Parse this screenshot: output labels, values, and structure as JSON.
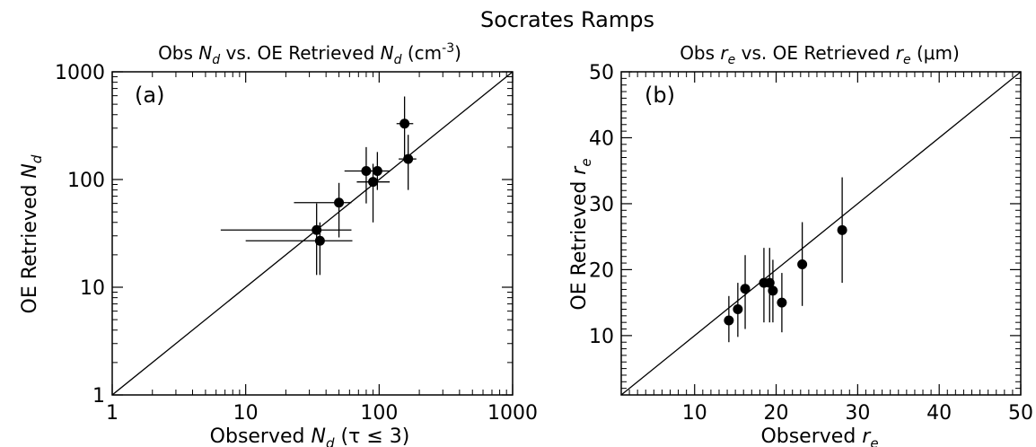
{
  "figure_title": "Socrates Ramps",
  "chart_data": [
    {
      "type": "scatter",
      "panel_label": "(a)",
      "title": {
        "pre": "Obs ",
        "v1": "N",
        "s1": "d",
        "mid": " vs. OE Retrieved ",
        "v2": "N",
        "s2": "d",
        "post1": " (cm",
        "sup": "-3",
        "post2": ")"
      },
      "xlabel": {
        "pre": "Observed ",
        "v": "N",
        "s": "d",
        "post": " (τ ≤ 3)"
      },
      "ylabel": {
        "pre": "OE Retrieved ",
        "v": "N",
        "s": "d"
      },
      "xscale": "log",
      "yscale": "log",
      "xlim": [
        1,
        1000
      ],
      "ylim": [
        1,
        1000
      ],
      "xticks": [
        1,
        10,
        100,
        1000
      ],
      "xtick_labels": [
        "1",
        "10",
        "100",
        "1000"
      ],
      "yticks": [
        1,
        10,
        100,
        1000
      ],
      "ytick_labels": [
        "1",
        "10",
        "100",
        "1000"
      ],
      "one_to_one_line": true,
      "points": [
        {
          "x": 34,
          "y": 34,
          "xerr": [
            6.5,
            62
          ],
          "yerr": [
            13,
            60
          ]
        },
        {
          "x": 36,
          "y": 27,
          "xerr": [
            10,
            63
          ],
          "yerr": [
            13,
            40
          ]
        },
        {
          "x": 50,
          "y": 61,
          "xerr": [
            23,
            62
          ],
          "yerr": [
            29,
            93
          ]
        },
        {
          "x": 80,
          "y": 120,
          "xerr": [
            55,
            100
          ],
          "yerr": [
            60,
            200
          ]
        },
        {
          "x": 90,
          "y": 95,
          "xerr": [
            68,
            120
          ],
          "yerr": [
            40,
            140
          ]
        },
        {
          "x": 97,
          "y": 120,
          "xerr": [
            80,
            120
          ],
          "yerr": [
            80,
            180
          ]
        },
        {
          "x": 155,
          "y": 330,
          "xerr": [
            135,
            180
          ],
          "yerr": [
            160,
            590
          ]
        },
        {
          "x": 165,
          "y": 155,
          "xerr": [
            140,
            190
          ],
          "yerr": [
            80,
            260
          ]
        }
      ]
    },
    {
      "type": "scatter",
      "panel_label": "(b)",
      "title": {
        "pre": "Obs ",
        "v1": "r",
        "s1": "e",
        "mid": " vs. OE Retrieved ",
        "v2": "r",
        "s2": "e",
        "post": " (μm)"
      },
      "xlabel": {
        "pre": "Observed ",
        "v": "r",
        "s": "e"
      },
      "ylabel": {
        "pre": "OE Retrieved ",
        "v": "r",
        "s": "e"
      },
      "xscale": "linear",
      "yscale": "linear",
      "xlim": [
        1,
        50
      ],
      "ylim": [
        1,
        50
      ],
      "xticks": [
        10,
        20,
        30,
        40,
        50
      ],
      "xtick_labels": [
        "10",
        "20",
        "30",
        "40",
        "50"
      ],
      "yticks": [
        10,
        20,
        30,
        40,
        50
      ],
      "ytick_labels": [
        "10",
        "20",
        "30",
        "40",
        "50"
      ],
      "one_to_one_line": true,
      "points": [
        {
          "x": 14.2,
          "y": 12.3,
          "yerr": [
            9.0,
            16.0
          ]
        },
        {
          "x": 15.3,
          "y": 14.0,
          "yerr": [
            9.8,
            18.0
          ]
        },
        {
          "x": 16.2,
          "y": 17.1,
          "yerr": [
            11.0,
            22.2
          ]
        },
        {
          "x": 18.5,
          "y": 18.0,
          "yerr": [
            12.0,
            23.3
          ]
        },
        {
          "x": 19.2,
          "y": 18.0,
          "yerr": [
            12.0,
            23.3
          ]
        },
        {
          "x": 19.6,
          "y": 16.8,
          "yerr": [
            12.0,
            21.5
          ]
        },
        {
          "x": 20.7,
          "y": 15.0,
          "yerr": [
            10.5,
            19.5
          ]
        },
        {
          "x": 23.2,
          "y": 20.8,
          "yerr": [
            14.5,
            27.2
          ]
        },
        {
          "x": 28.1,
          "y": 26.0,
          "yerr": [
            18.0,
            34.0
          ]
        }
      ]
    }
  ]
}
